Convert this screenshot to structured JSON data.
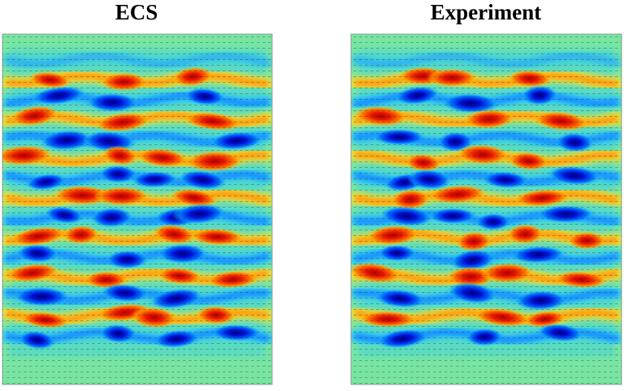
{
  "panels": [
    {
      "title": "ECS"
    },
    {
      "title": "Experiment"
    }
  ]
}
